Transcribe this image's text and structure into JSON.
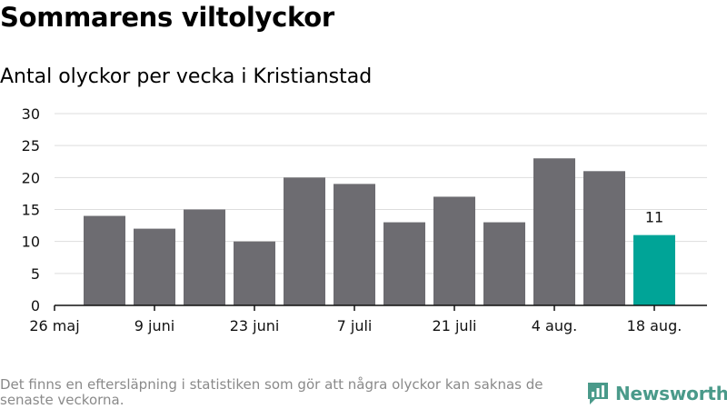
{
  "header": {
    "title": "Sommarens viltolyckor",
    "subtitle": "Antal olyckor per vecka i Kristianstad"
  },
  "footer": {
    "note": "Det finns en eftersläpning i statistiken som gör att några olyckor kan saknas de senaste veckorna.",
    "brand": "Newsworthy"
  },
  "colors": {
    "bar": "#6d6c71",
    "highlight": "#00a497",
    "grid": "#dddddd",
    "brand": "#4a9a8a"
  },
  "chart_data": {
    "type": "bar",
    "values": [
      14,
      12,
      15,
      10,
      20,
      19,
      13,
      17,
      13,
      23,
      21,
      11
    ],
    "highlight_index": 11,
    "highlight_label": "11",
    "ylim": [
      0,
      30
    ],
    "yticks": [
      0,
      5,
      10,
      15,
      20,
      25,
      30
    ],
    "xtick_labels": [
      "26 maj",
      "9 juni",
      "23 juni",
      "7 juli",
      "21 juli",
      "4 aug.",
      "18 aug."
    ],
    "grid": true
  }
}
